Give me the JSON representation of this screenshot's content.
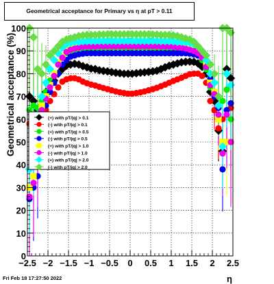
{
  "chart_data": {
    "type": "scatter",
    "title": "Geometrical acceptance for Primary vs  η at pT > 0.11",
    "xlabel": "η",
    "ylabel": "Geometrical acceptance (%)",
    "xlim": [
      -2.5,
      2.5
    ],
    "ylim": [
      0,
      100
    ],
    "x_ticks": [
      "−2.5",
      "−2",
      "−1.5",
      "−1",
      "−0.5",
      "0",
      "0.5",
      "1",
      "1.5",
      "2",
      "2.5"
    ],
    "y_ticks": [
      "0",
      "10",
      "20",
      "30",
      "40",
      "50",
      "60",
      "70",
      "80",
      "90",
      "100"
    ],
    "grid": true,
    "legend_position": "left-middle",
    "x": [
      -2.45,
      -2.35,
      -2.25,
      -2.15,
      -2.05,
      -1.95,
      -1.85,
      -1.75,
      -1.65,
      -1.55,
      -1.45,
      -1.35,
      -1.25,
      -1.15,
      -1.05,
      -0.95,
      -0.85,
      -0.75,
      -0.65,
      -0.55,
      -0.45,
      -0.35,
      -0.25,
      -0.15,
      -0.05,
      0.05,
      0.15,
      0.25,
      0.35,
      0.45,
      0.55,
      0.65,
      0.75,
      0.85,
      0.95,
      1.05,
      1.15,
      1.25,
      1.35,
      1.45,
      1.55,
      1.65,
      1.75,
      1.85,
      1.95,
      2.05,
      2.15,
      2.25,
      2.35,
      2.45
    ],
    "series": [
      {
        "name": "(+) with pT/|q| > 0.1",
        "color": "#000000",
        "marker": "diamond",
        "values": [
          70,
          68,
          64,
          66,
          72,
          75,
          77,
          80,
          82,
          83.5,
          84,
          84.3,
          84,
          83.3,
          82.8,
          82.2,
          82,
          81.5,
          81.2,
          81,
          80.7,
          80.4,
          80.2,
          80,
          80,
          80,
          80.2,
          80.4,
          80.6,
          80.8,
          81,
          81.3,
          82,
          82.8,
          83.5,
          84,
          84.5,
          85,
          85.2,
          85.3,
          85.2,
          84.5,
          83,
          80,
          72,
          68,
          55,
          46,
          82,
          78
        ]
      },
      {
        "name": "(-) with pT/|q| > 0.1",
        "color": "#ff0000",
        "marker": "circle",
        "values": [
          58,
          57,
          50,
          60,
          64,
          68,
          71,
          74,
          76.5,
          77.5,
          78,
          78,
          77.5,
          76.5,
          75.8,
          75.2,
          74.8,
          74.2,
          73.7,
          73.2,
          72.7,
          72.2,
          71.8,
          71.5,
          71.2,
          71.2,
          71.5,
          71.8,
          72.2,
          72.7,
          73.2,
          73.8,
          74.5,
          75.2,
          76,
          76.8,
          77.5,
          78.2,
          79,
          79.8,
          80,
          80,
          79,
          76,
          68,
          64,
          56,
          60,
          73,
          65
        ]
      },
      {
        "name": "(+) with pT/|q| > 0.5",
        "color": "#00ee00",
        "marker": "circle",
        "values": [
          64,
          66,
          65,
          68,
          72,
          77,
          80,
          84,
          87,
          89,
          90,
          90.5,
          91,
          91,
          91.2,
          91.3,
          91.3,
          91.3,
          91.4,
          91.4,
          91.5,
          91.5,
          91.5,
          91.5,
          91.5,
          91.5,
          91.5,
          91.5,
          91.5,
          91.4,
          91.4,
          91.3,
          91.3,
          91.2,
          91,
          91,
          90.8,
          90.5,
          90.5,
          90,
          89,
          88,
          86,
          82,
          74,
          70,
          66,
          68,
          73,
          60
        ]
      },
      {
        "name": "(-) with pT/|q| > 0.5",
        "color": "#0000ee",
        "marker": "circle",
        "values": [
          25,
          30,
          35,
          62,
          66,
          72,
          76,
          80,
          84,
          86,
          87.5,
          88,
          88.5,
          88.8,
          89,
          89,
          89,
          89,
          89,
          89,
          89,
          89,
          89,
          89,
          89,
          89,
          89,
          89,
          89,
          89,
          89,
          89,
          89,
          89,
          89,
          89,
          89,
          89,
          89,
          88.8,
          88.5,
          88,
          87,
          84,
          78,
          70,
          65,
          38,
          64,
          67
        ]
      },
      {
        "name": "(+) with pT/|q| > 1.0",
        "color": "#ffff00",
        "marker": "square",
        "values": [
          30,
          35,
          45,
          66,
          70,
          75,
          80,
          85,
          88,
          90,
          91,
          91.5,
          92,
          92.2,
          92.3,
          92.4,
          92.4,
          92.5,
          92.5,
          92.5,
          92.5,
          92.5,
          92.5,
          92.5,
          92.5,
          92.5,
          92.5,
          92.5,
          92.5,
          92.5,
          92.5,
          92.5,
          92.5,
          92.4,
          92.4,
          92.3,
          92.2,
          92,
          91.8,
          91.5,
          91,
          90,
          88,
          84,
          76,
          72,
          60,
          50,
          50,
          50
        ]
      },
      {
        "name": "(-) with pT/|q| > 1.0",
        "color": "#ee00ee",
        "marker": "circle",
        "values": [
          26,
          32,
          40,
          64,
          69,
          74,
          79,
          84,
          87,
          89.5,
          90.5,
          91,
          91.5,
          91.8,
          92,
          92,
          92,
          92.1,
          92.1,
          92.1,
          92.1,
          92.1,
          92.1,
          92.1,
          92.1,
          92.1,
          92.1,
          92.1,
          92.1,
          92.1,
          92.1,
          92.1,
          92,
          92,
          92,
          91.8,
          91.6,
          91.4,
          91,
          90.5,
          90,
          89,
          87,
          83,
          75,
          71,
          62,
          45,
          62,
          50
        ]
      },
      {
        "name": "(+) with pT/|q| > 2.0",
        "color": "#00ffff",
        "marker": "diamond",
        "values": [
          38,
          50,
          62,
          70,
          76,
          82,
          86,
          89,
          91.5,
          93,
          93.5,
          94,
          94,
          94.2,
          94.3,
          94.3,
          94.3,
          94.4,
          94.4,
          94.4,
          94.4,
          94.4,
          94.4,
          94.4,
          94.4,
          94.4,
          94.4,
          94.4,
          94.4,
          94.4,
          94.4,
          94.4,
          94.3,
          94.3,
          94.3,
          94.2,
          94,
          94,
          93.8,
          93.5,
          93,
          92,
          90,
          86,
          80,
          76,
          66,
          48,
          80,
          75
        ]
      },
      {
        "name": "(-) with pT/|q| > 2.0",
        "color": "#66dd44",
        "marker": "diamond",
        "values": [
          100,
          96,
          82,
          80,
          84,
          88,
          90,
          92,
          94,
          95,
          95.5,
          96,
          96.5,
          96.8,
          97,
          97,
          97,
          97.2,
          97.2,
          97.3,
          97.3,
          97.3,
          97.3,
          97.3,
          97.3,
          97.3,
          97.3,
          97.3,
          97.3,
          97.3,
          97.2,
          97.2,
          97,
          97,
          97,
          96.8,
          96.5,
          96,
          95.5,
          95,
          94,
          92,
          90,
          88,
          84,
          80,
          70,
          100,
          100,
          98
        ]
      }
    ]
  },
  "footer": {
    "timestamp": "Fri Feb 18 17:27:50 2022"
  }
}
